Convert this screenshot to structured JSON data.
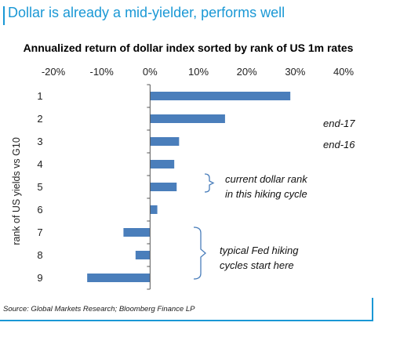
{
  "header": {
    "title": "Dollar is already a mid-yielder, performs well",
    "accent_color": "#1a98d5"
  },
  "source": "Source:  Global Markets Research; Bloomberg Finance LP",
  "chart_data": {
    "type": "bar",
    "orientation": "horizontal",
    "title": "Annualized return of dollar index sorted by rank of US 1m rates",
    "xlabel": "",
    "ylabel": "rank of US yields vs G10",
    "categories": [
      "1",
      "2",
      "3",
      "4",
      "5",
      "6",
      "7",
      "8",
      "9"
    ],
    "values": [
      29,
      15.5,
      6,
      5,
      5.5,
      1.5,
      -5.5,
      -3,
      -13
    ],
    "xlim": [
      -20,
      40
    ],
    "xticks": [
      -20,
      -10,
      0,
      10,
      20,
      30,
      40
    ],
    "tick_suffix": "%",
    "xaxis_position": "top",
    "grid": false,
    "bar_color": "#4a7ebb",
    "annotations": {
      "end17": "end-17",
      "end16": "end-16",
      "current_line1": "current dollar rank",
      "current_line2": "in this hiking cycle",
      "fed_line1": "typical Fed hiking",
      "fed_line2": "cycles start here"
    }
  }
}
